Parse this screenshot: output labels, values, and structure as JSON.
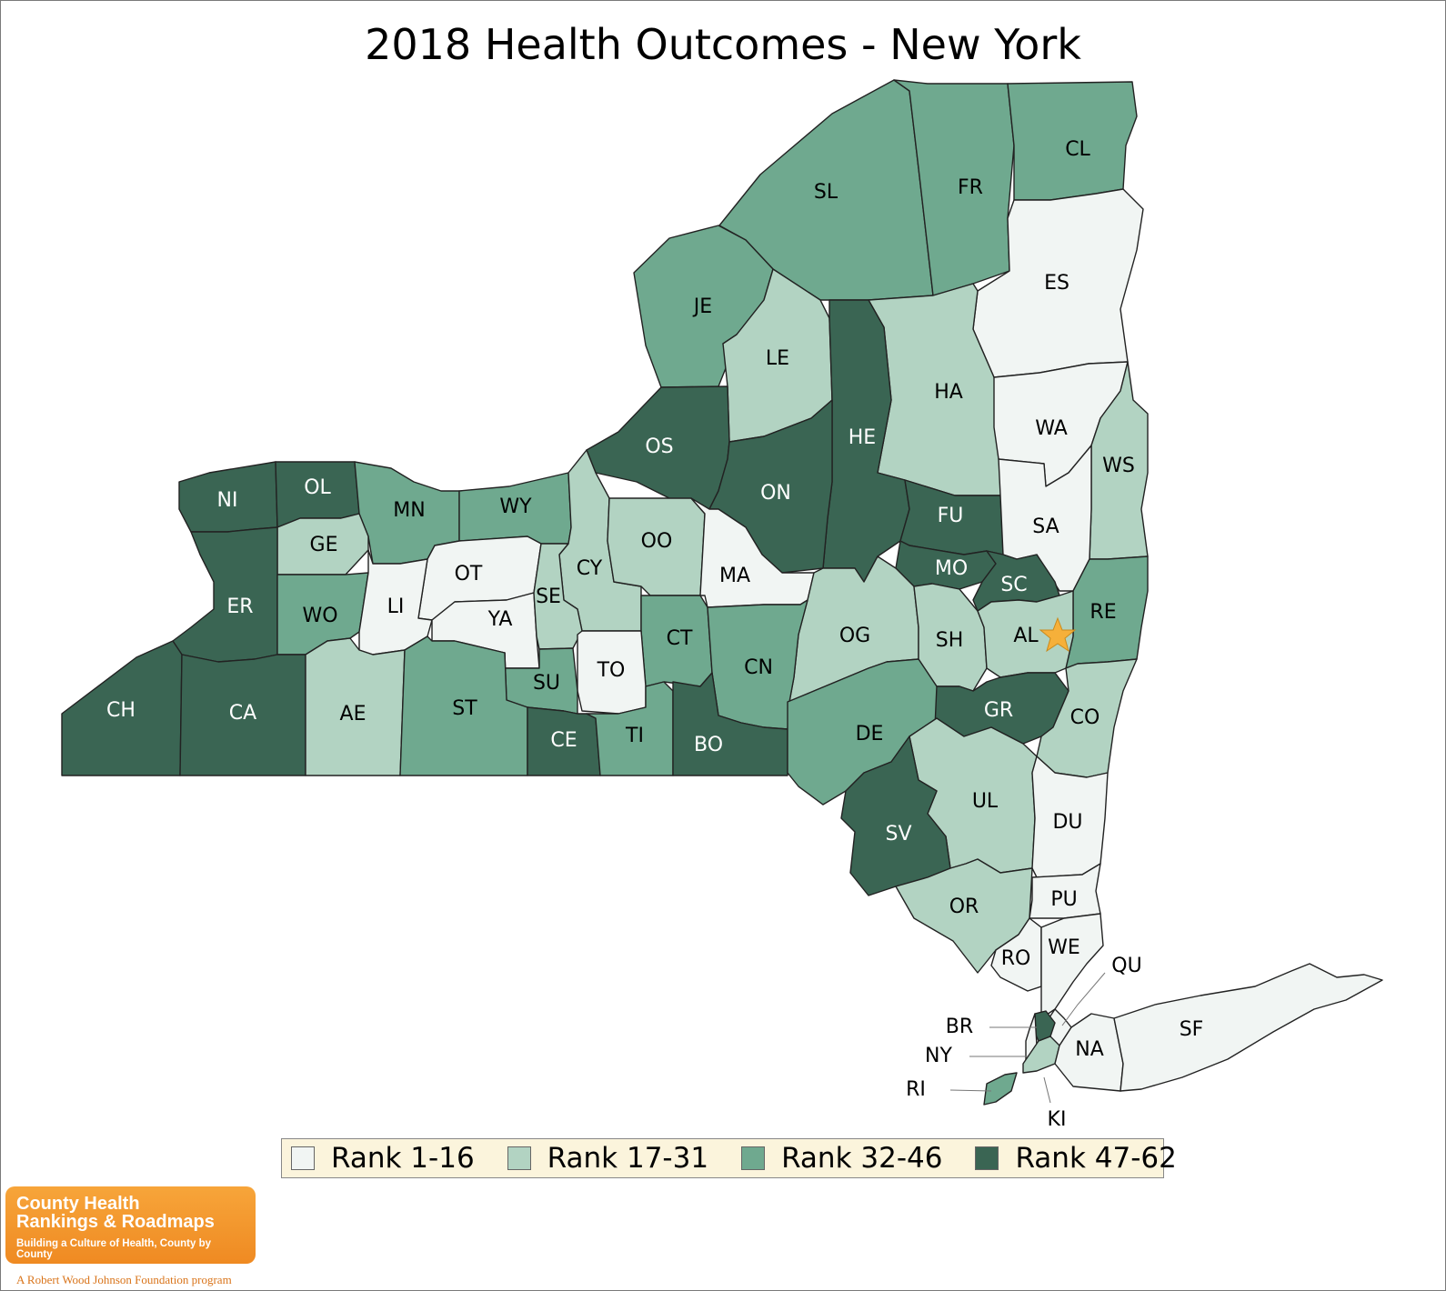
{
  "title": "2018 Health Outcomes - New York",
  "colors": {
    "rank_1_16": "#f1f5f3",
    "rank_17_31": "#b2d3c2",
    "rank_32_46": "#6fa98f",
    "rank_47_62": "#3a6553",
    "highlight_star": "#f6b03a"
  },
  "legend": [
    {
      "label": "Rank 1-16",
      "tier": "rank_1_16"
    },
    {
      "label": "Rank 17-31",
      "tier": "rank_17_31"
    },
    {
      "label": "Rank 32-46",
      "tier": "rank_32_46"
    },
    {
      "label": "Rank 47-62",
      "tier": "rank_47_62"
    }
  ],
  "counties": [
    {
      "code": "SL",
      "tier": "rank_32_46"
    },
    {
      "code": "FR",
      "tier": "rank_32_46"
    },
    {
      "code": "CL",
      "tier": "rank_32_46"
    },
    {
      "code": "ES",
      "tier": "rank_1_16"
    },
    {
      "code": "JE",
      "tier": "rank_32_46"
    },
    {
      "code": "LE",
      "tier": "rank_17_31"
    },
    {
      "code": "HA",
      "tier": "rank_17_31"
    },
    {
      "code": "HE",
      "tier": "rank_47_62"
    },
    {
      "code": "WA",
      "tier": "rank_1_16"
    },
    {
      "code": "WS",
      "tier": "rank_17_31"
    },
    {
      "code": "OS",
      "tier": "rank_47_62"
    },
    {
      "code": "ON",
      "tier": "rank_47_62"
    },
    {
      "code": "FU",
      "tier": "rank_47_62"
    },
    {
      "code": "SA",
      "tier": "rank_1_16"
    },
    {
      "code": "NI",
      "tier": "rank_47_62"
    },
    {
      "code": "OL",
      "tier": "rank_47_62"
    },
    {
      "code": "MN",
      "tier": "rank_32_46"
    },
    {
      "code": "WY",
      "tier": "rank_32_46"
    },
    {
      "code": "GE",
      "tier": "rank_17_31"
    },
    {
      "code": "OT",
      "tier": "rank_1_16"
    },
    {
      "code": "CY",
      "tier": "rank_17_31"
    },
    {
      "code": "OO",
      "tier": "rank_17_31"
    },
    {
      "code": "MA",
      "tier": "rank_1_16"
    },
    {
      "code": "MO",
      "tier": "rank_47_62"
    },
    {
      "code": "SC",
      "tier": "rank_47_62"
    },
    {
      "code": "RE",
      "tier": "rank_32_46"
    },
    {
      "code": "ER",
      "tier": "rank_47_62"
    },
    {
      "code": "WO",
      "tier": "rank_32_46"
    },
    {
      "code": "LI",
      "tier": "rank_1_16"
    },
    {
      "code": "YA",
      "tier": "rank_1_16"
    },
    {
      "code": "SE",
      "tier": "rank_17_31"
    },
    {
      "code": "OG",
      "tier": "rank_17_31"
    },
    {
      "code": "SH",
      "tier": "rank_17_31"
    },
    {
      "code": "AL",
      "tier": "rank_17_31"
    },
    {
      "code": "CT",
      "tier": "rank_32_46"
    },
    {
      "code": "CN",
      "tier": "rank_32_46"
    },
    {
      "code": "TO",
      "tier": "rank_1_16"
    },
    {
      "code": "SU",
      "tier": "rank_32_46"
    },
    {
      "code": "CH",
      "tier": "rank_47_62"
    },
    {
      "code": "CA",
      "tier": "rank_47_62"
    },
    {
      "code": "AE",
      "tier": "rank_17_31"
    },
    {
      "code": "ST",
      "tier": "rank_32_46"
    },
    {
      "code": "CE",
      "tier": "rank_47_62"
    },
    {
      "code": "TI",
      "tier": "rank_32_46"
    },
    {
      "code": "BO",
      "tier": "rank_47_62"
    },
    {
      "code": "DE",
      "tier": "rank_32_46"
    },
    {
      "code": "GR",
      "tier": "rank_47_62"
    },
    {
      "code": "CO",
      "tier": "rank_17_31"
    },
    {
      "code": "UL",
      "tier": "rank_17_31"
    },
    {
      "code": "DU",
      "tier": "rank_1_16"
    },
    {
      "code": "SV",
      "tier": "rank_47_62"
    },
    {
      "code": "OR",
      "tier": "rank_17_31"
    },
    {
      "code": "PU",
      "tier": "rank_1_16"
    },
    {
      "code": "RO",
      "tier": "rank_1_16"
    },
    {
      "code": "WE",
      "tier": "rank_1_16"
    },
    {
      "code": "QU",
      "tier": "rank_1_16"
    },
    {
      "code": "BR",
      "tier": "rank_47_62"
    },
    {
      "code": "NY",
      "tier": "rank_1_16"
    },
    {
      "code": "RI",
      "tier": "rank_32_46"
    },
    {
      "code": "KI",
      "tier": "rank_17_31"
    },
    {
      "code": "NA",
      "tier": "rank_1_16"
    },
    {
      "code": "SF",
      "tier": "rank_1_16"
    }
  ],
  "capital_marker": {
    "county": "AL",
    "icon": "star-icon"
  },
  "logo": {
    "line1": "County Health",
    "line2": "Rankings & Roadmaps",
    "tagline": "Building a Culture of Health, County by County",
    "sub": "A Robert Wood Johnson Foundation program"
  }
}
